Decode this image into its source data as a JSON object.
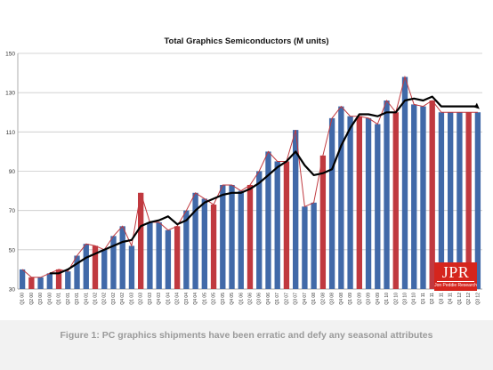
{
  "chart_data": {
    "type": "bar",
    "title": "Total Graphics Semiconductors (M units)",
    "xlabel": "",
    "ylabel": "",
    "ylim": [
      30,
      150
    ],
    "yticks": [
      30,
      50,
      70,
      90,
      110,
      130,
      150
    ],
    "grid": true,
    "categories": [
      "Q1 00",
      "Q2 00",
      "Q3 00",
      "Q4 00",
      "Q1 01",
      "Q2 01",
      "Q3 01",
      "Q4 01",
      "Q1 02",
      "Q2 02",
      "Q3 02",
      "Q4 02",
      "Q1 03",
      "Q2 03",
      "Q3 03",
      "Q4 03",
      "Q1 04",
      "Q2 04",
      "Q3 04",
      "Q4 04",
      "Q1 05",
      "Q2 05",
      "Q3 05",
      "Q4 05",
      "Q1 06",
      "Q2 06",
      "Q3 06",
      "Q4 06",
      "Q1 07",
      "Q2 07",
      "Q3 07",
      "Q4 07",
      "Q1 08",
      "Q2 08",
      "Q3 08",
      "Q4 08",
      "Q1 09",
      "Q2 09",
      "Q3 09",
      "Q4 09",
      "Q1 10",
      "Q2 10",
      "Q3 10",
      "Q4 10",
      "Q1 11",
      "Q2 11",
      "Q3 11",
      "Q4 11",
      "Q1 12",
      "Q2 12",
      "Q3 12"
    ],
    "series": [
      {
        "type": "bar",
        "values": [
          40,
          36,
          36,
          38,
          40,
          39,
          47,
          53,
          52,
          50,
          57,
          62,
          52,
          79,
          64,
          64,
          60,
          62,
          70,
          79,
          76,
          73,
          83,
          83,
          80,
          83,
          90,
          100,
          95,
          95,
          111,
          72,
          74,
          98,
          117,
          123,
          118,
          118,
          117,
          114,
          126,
          120,
          138,
          124,
          123,
          126,
          120,
          120,
          120,
          120,
          120
        ],
        "colors": [
          "#4169a8",
          "#c0393f",
          "#4169a8",
          "#4169a8",
          "#c0393f",
          "#4169a8",
          "#4169a8",
          "#4169a8",
          "#c0393f",
          "#4169a8",
          "#4169a8",
          "#4169a8",
          "#4169a8",
          "#c0393f",
          "#4169a8",
          "#4169a8",
          "#4169a8",
          "#c0393f",
          "#4169a8",
          "#4169a8",
          "#4169a8",
          "#c0393f",
          "#4169a8",
          "#4169a8",
          "#4169a8",
          "#c0393f",
          "#4169a8",
          "#4169a8",
          "#4169a8",
          "#c0393f",
          "#4169a8",
          "#4169a8",
          "#4169a8",
          "#c0393f",
          "#4169a8",
          "#4169a8",
          "#4169a8",
          "#c0393f",
          "#4169a8",
          "#4169a8",
          "#4169a8",
          "#c0393f",
          "#4169a8",
          "#4169a8",
          "#4169a8",
          "#c0393f",
          "#4169a8",
          "#4169a8",
          "#4169a8",
          "#c0393f",
          "#4169a8"
        ]
      },
      {
        "type": "line",
        "color": "#c0393f",
        "values": [
          40,
          36,
          36,
          38,
          40,
          39,
          47,
          53,
          52,
          50,
          57,
          62,
          52,
          79,
          64,
          64,
          60,
          62,
          70,
          79,
          76,
          73,
          83,
          83,
          80,
          83,
          90,
          100,
          95,
          95,
          111,
          72,
          74,
          98,
          117,
          123,
          118,
          118,
          117,
          114,
          126,
          120,
          138,
          124,
          123,
          126,
          120,
          120,
          120,
          120,
          120
        ]
      },
      {
        "type": "line",
        "color": "#000000",
        "values": [
          null,
          null,
          null,
          38,
          38,
          40,
          43,
          46,
          48,
          50,
          52,
          54,
          55,
          62,
          64,
          65,
          67,
          63,
          65,
          70,
          74,
          76,
          78,
          79,
          79,
          81,
          84,
          88,
          92,
          95,
          100,
          93,
          88,
          89,
          91,
          103,
          112,
          119,
          119,
          118,
          120,
          120,
          126,
          127,
          126,
          128,
          123,
          123,
          123,
          123,
          123
        ]
      }
    ]
  },
  "logo": {
    "mark": "JPR",
    "subtitle": "Jon Peddie Research"
  },
  "caption": "Figure 1: PC graphics shipments have been erratic and defy any seasonal attributes"
}
